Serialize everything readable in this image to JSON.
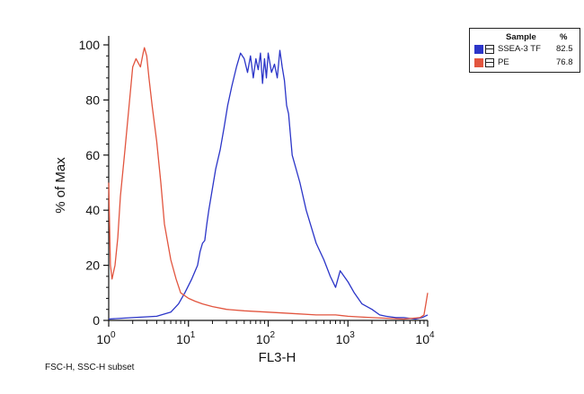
{
  "chart_data": {
    "type": "line",
    "title": "",
    "xlabel": "FL3-H",
    "ylabel": "% of Max",
    "x_scale": "log10",
    "xlim": [
      1,
      10000
    ],
    "ylim": [
      0,
      100
    ],
    "x_ticks": [
      {
        "value": 1,
        "base": "10",
        "exp": "0"
      },
      {
        "value": 10,
        "base": "10",
        "exp": "1"
      },
      {
        "value": 100,
        "base": "10",
        "exp": "2"
      },
      {
        "value": 1000,
        "base": "10",
        "exp": "3"
      },
      {
        "value": 10000,
        "base": "10",
        "exp": "4"
      }
    ],
    "y_ticks": [
      "0",
      "20",
      "40",
      "60",
      "80",
      "100"
    ],
    "legend_position": "top-right",
    "legend_header": {
      "sample": "Sample",
      "percent": "%"
    },
    "series": [
      {
        "name": "SSEA-3 TF",
        "percent": "82.5",
        "color": "#2b35c8",
        "x": [
          1,
          2,
          4,
          6,
          7.5,
          9,
          11,
          13,
          14,
          15,
          16,
          17,
          18,
          20,
          22,
          25,
          28,
          31,
          35,
          40,
          45,
          50,
          55,
          60,
          65,
          70,
          75,
          80,
          85,
          90,
          95,
          100,
          110,
          120,
          130,
          140,
          150,
          160,
          170,
          180,
          200,
          250,
          300,
          400,
          500,
          600,
          700,
          800,
          1000,
          1200,
          1500,
          2000,
          2500,
          3000,
          4000,
          5000,
          7000,
          8500,
          10000
        ],
        "y": [
          0.5,
          1,
          1.5,
          3,
          6,
          10,
          15,
          20,
          25,
          28,
          29,
          35,
          40,
          48,
          55,
          62,
          70,
          78,
          85,
          92,
          97,
          95,
          90,
          96,
          88,
          95,
          91,
          97,
          86,
          95,
          88,
          97,
          90,
          93,
          88,
          98,
          92,
          87,
          78,
          75,
          60,
          50,
          40,
          28,
          22,
          16,
          12,
          18,
          14,
          10,
          6,
          4,
          2,
          1.5,
          1,
          1,
          0.5,
          1,
          2
        ]
      },
      {
        "name": "PE",
        "percent": "76.8",
        "color": "#e2553f",
        "x": [
          1,
          1.05,
          1.1,
          1.2,
          1.3,
          1.4,
          1.6,
          1.8,
          2.0,
          2.2,
          2.5,
          2.7,
          2.8,
          3.0,
          3.2,
          3.5,
          4.0,
          4.5,
          5,
          6,
          7,
          8,
          10,
          12,
          15,
          20,
          30,
          50,
          100,
          200,
          400,
          700,
          1000,
          2000,
          5000,
          8000,
          9000,
          9500,
          10000
        ],
        "y": [
          50,
          20,
          15,
          20,
          30,
          45,
          62,
          78,
          92,
          95,
          92,
          97,
          99,
          96,
          88,
          78,
          65,
          50,
          35,
          22,
          15,
          10,
          8,
          7,
          6,
          5,
          4,
          3.5,
          3,
          2.5,
          2,
          2,
          1.5,
          1,
          0.5,
          1,
          2,
          6,
          10
        ]
      }
    ]
  },
  "footer_note": "FSC-H, SSC-H subset"
}
